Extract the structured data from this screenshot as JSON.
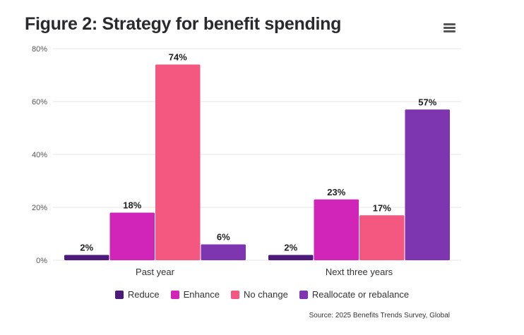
{
  "header": {
    "title": "Figure 2: Strategy for benefit spending",
    "menu_icon": "hamburger-menu-icon"
  },
  "chart_data": {
    "type": "bar",
    "title": "Figure 2: Strategy for benefit spending",
    "xlabel": "",
    "ylabel": "",
    "categories": [
      "Past year",
      "Next three years"
    ],
    "series": [
      {
        "name": "Reduce",
        "color": "#4b1a7a",
        "values": [
          2,
          2
        ]
      },
      {
        "name": "Enhance",
        "color": "#d124b8",
        "values": [
          18,
          23
        ]
      },
      {
        "name": "No change",
        "color": "#f4577f",
        "values": [
          74,
          17
        ]
      },
      {
        "name": "Reallocate or rebalance",
        "color": "#7e36b0",
        "values": [
          6,
          57
        ]
      }
    ],
    "ylim": [
      0,
      80
    ],
    "yticks": [
      0,
      20,
      40,
      60,
      80
    ],
    "ytick_labels": [
      "0%",
      "20%",
      "40%",
      "60%",
      "80%"
    ],
    "value_suffix": "%",
    "grid": true,
    "legend_position": "bottom-center",
    "source": "Source: 2025 Benefits Trends Survey, Global"
  }
}
